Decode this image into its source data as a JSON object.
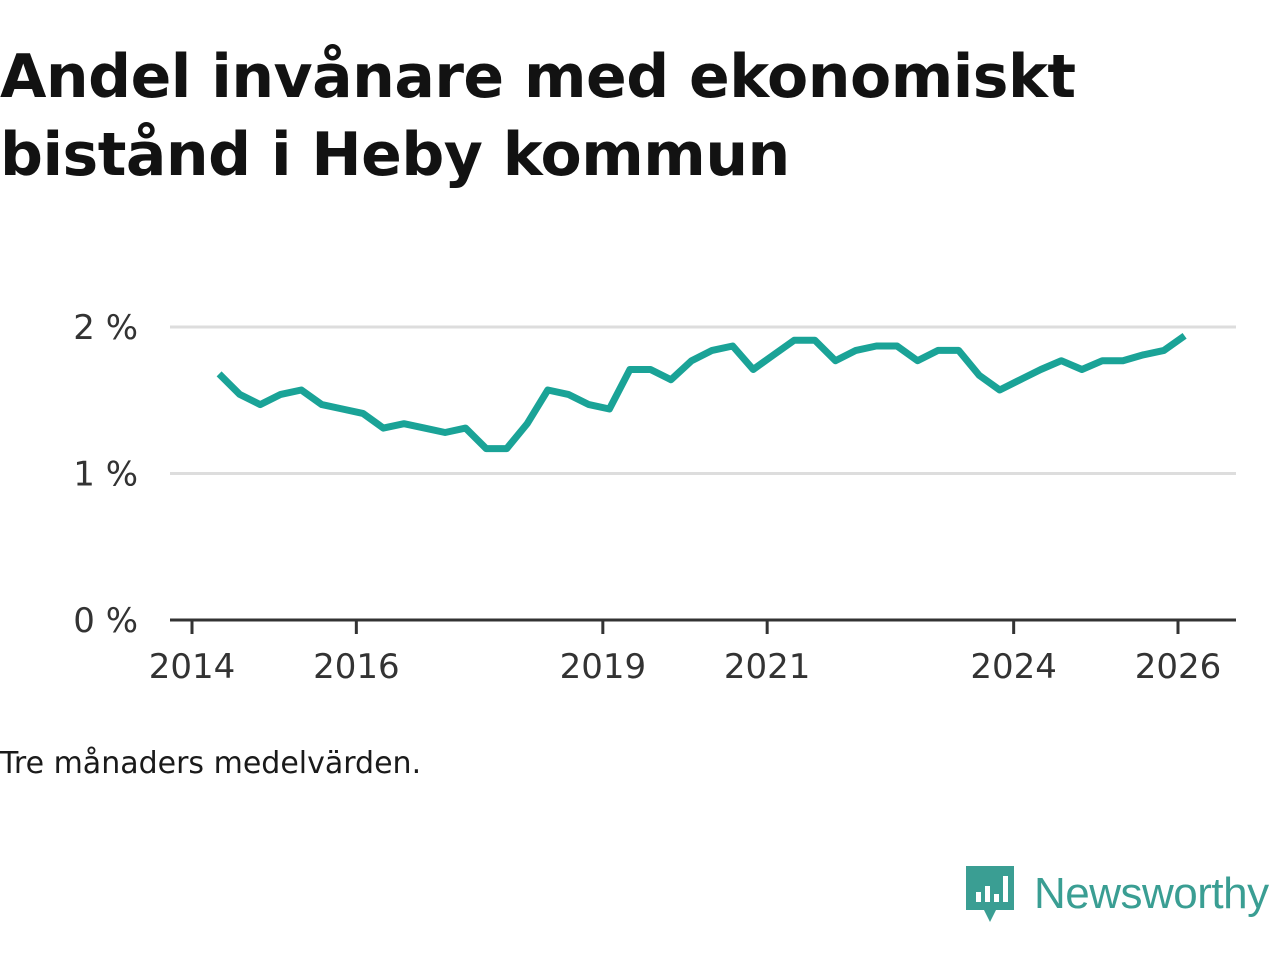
{
  "title": "Andel invånare med ekonomiskt bistånd i Heby kommun",
  "note": "Tre månaders medelvärden.",
  "brand": {
    "name": "Newsworthy",
    "icon": "newsworthy-logo-icon",
    "color": "#3a9e93"
  },
  "colors": {
    "line": "#1aa397",
    "grid": "#dddddd",
    "axis": "#333333"
  },
  "chart_data": {
    "type": "line",
    "title": "Andel invånare med ekonomiskt bistånd i Heby kommun",
    "xlabel": "",
    "ylabel": "",
    "xlim": [
      2013.9,
      2027.2
    ],
    "ylim": [
      0,
      2
    ],
    "y_ticks": [
      {
        "value": 0,
        "label": "0 %"
      },
      {
        "value": 1,
        "label": "1 %"
      },
      {
        "value": 2,
        "label": "2 %"
      }
    ],
    "x_ticks": [
      {
        "value": 2014,
        "label": "2014"
      },
      {
        "value": 2016,
        "label": "2016"
      },
      {
        "value": 2019,
        "label": "2019"
      },
      {
        "value": 2021,
        "label": "2021"
      },
      {
        "value": 2024,
        "label": "2024"
      },
      {
        "value": 2026,
        "label": "2026"
      }
    ],
    "grid": true,
    "series": [
      {
        "name": "Andel invånare med ekonomiskt bistånd",
        "x": [
          2014.33,
          2014.58,
          2014.83,
          2015.08,
          2015.33,
          2015.58,
          2015.83,
          2016.08,
          2016.33,
          2016.58,
          2016.83,
          2017.08,
          2017.33,
          2017.58,
          2017.83,
          2018.08,
          2018.33,
          2018.58,
          2018.83,
          2019.08,
          2019.33,
          2019.58,
          2019.83,
          2020.08,
          2020.33,
          2020.58,
          2020.83,
          2021.08,
          2021.33,
          2021.58,
          2021.83,
          2022.08,
          2022.33,
          2022.58,
          2022.83,
          2023.08,
          2023.33,
          2023.58,
          2023.83,
          2024.08,
          2024.33,
          2024.58,
          2024.83,
          2025.08,
          2025.33,
          2025.58,
          2025.83,
          2026.08
        ],
        "values": [
          1.68,
          1.54,
          1.47,
          1.54,
          1.57,
          1.47,
          1.44,
          1.41,
          1.31,
          1.34,
          1.31,
          1.28,
          1.31,
          1.17,
          1.17,
          1.34,
          1.57,
          1.54,
          1.47,
          1.44,
          1.71,
          1.71,
          1.64,
          1.77,
          1.84,
          1.87,
          1.71,
          1.81,
          1.91,
          1.91,
          1.77,
          1.84,
          1.87,
          1.87,
          1.77,
          1.84,
          1.84,
          1.67,
          1.57,
          1.64,
          1.71,
          1.77,
          1.71,
          1.77,
          1.77,
          1.81,
          1.84,
          1.94
        ]
      }
    ]
  }
}
